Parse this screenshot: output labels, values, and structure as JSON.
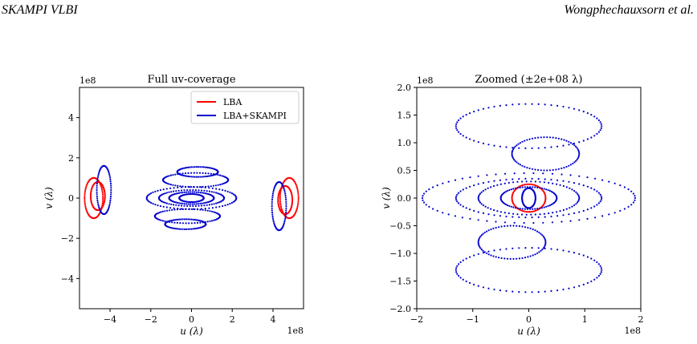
{
  "header": {
    "left": "SKAMPI VLBI",
    "right": "Wongphechauxsorn et al."
  },
  "colors": {
    "lba": "#ff0000",
    "skampi": "#0000cc"
  },
  "chart_data": [
    {
      "type": "scatter",
      "title": "Full uv-coverage",
      "xlabel": "u (λ)",
      "ylabel": "v (λ)",
      "x_offset_label": "1e8",
      "y_offset_label": "1e8",
      "xlim": [
        -5.5,
        5.5
      ],
      "ylim": [
        -5.5,
        5.5
      ],
      "xticks": [
        -4,
        -2,
        0,
        2,
        4
      ],
      "xtick_labels": [
        "−4",
        "−2",
        "0",
        "2",
        "4"
      ],
      "yticks": [
        -4,
        -2,
        0,
        2,
        4
      ],
      "ytick_labels": [
        "−4",
        "−2",
        "0",
        "2",
        "4"
      ],
      "grid": false,
      "legend": {
        "placement": "top-right",
        "entries": [
          "LBA",
          "LBA+SKAMPI"
        ]
      },
      "series": [
        {
          "name": "LBA",
          "color": "#ff0000",
          "arcs": [
            {
              "center": [
                -4.8,
                0.0
              ],
              "rx": 0.45,
              "ry": 1.0
            },
            {
              "center": [
                -4.6,
                0.1
              ],
              "rx": 0.35,
              "ry": 0.7
            },
            {
              "center": [
                4.8,
                0.0
              ],
              "rx": 0.45,
              "ry": 1.0
            },
            {
              "center": [
                4.6,
                -0.1
              ],
              "rx": 0.35,
              "ry": 0.7
            }
          ]
        },
        {
          "name": "LBA+SKAMPI",
          "color": "#0000cc",
          "arcs": [
            {
              "center": [
                0.0,
                0.0
              ],
              "rx": 2.2,
              "ry": 0.55
            },
            {
              "center": [
                0.0,
                0.0
              ],
              "rx": 1.6,
              "ry": 0.4
            },
            {
              "center": [
                0.0,
                0.0
              ],
              "rx": 1.1,
              "ry": 0.3
            },
            {
              "center": [
                0.0,
                0.0
              ],
              "rx": 0.6,
              "ry": 0.2
            },
            {
              "center": [
                0.2,
                0.9
              ],
              "rx": 1.6,
              "ry": 0.35
            },
            {
              "center": [
                -0.2,
                -0.9
              ],
              "rx": 1.6,
              "ry": 0.35
            },
            {
              "center": [
                0.3,
                1.3
              ],
              "rx": 1.0,
              "ry": 0.25
            },
            {
              "center": [
                -0.3,
                -1.3
              ],
              "rx": 1.0,
              "ry": 0.25
            },
            {
              "center": [
                -4.3,
                0.4
              ],
              "rx": 0.35,
              "ry": 1.2
            },
            {
              "center": [
                4.3,
                -0.4
              ],
              "rx": 0.35,
              "ry": 1.2
            }
          ]
        }
      ]
    },
    {
      "type": "scatter",
      "title": "Zoomed (±2e+08 λ)",
      "xlabel": "u (λ)",
      "ylabel": "v (λ)",
      "x_offset_label": "1e8",
      "y_offset_label": "1e8",
      "xlim": [
        -2.0,
        2.0
      ],
      "ylim": [
        -2.0,
        2.0
      ],
      "xticks": [
        -2,
        -1,
        0,
        1,
        2
      ],
      "xtick_labels": [
        "−2",
        "−1",
        "0",
        "1",
        "2"
      ],
      "yticks": [
        -2.0,
        -1.5,
        -1.0,
        -0.5,
        0.0,
        0.5,
        1.0,
        1.5,
        2.0
      ],
      "ytick_labels": [
        "−2.0",
        "−1.5",
        "−1.0",
        "−0.5",
        "0.0",
        "0.5",
        "1.0",
        "1.5",
        "2.0"
      ],
      "grid": false,
      "series": [
        {
          "name": "LBA",
          "color": "#ff0000",
          "arcs": [
            {
              "center": [
                0.0,
                0.0
              ],
              "rx": 0.3,
              "ry": 0.25
            }
          ]
        },
        {
          "name": "LBA+SKAMPI",
          "color": "#0000cc",
          "arcs": [
            {
              "center": [
                0.0,
                0.0
              ],
              "rx": 1.9,
              "ry": 0.45
            },
            {
              "center": [
                0.0,
                0.0
              ],
              "rx": 1.3,
              "ry": 0.35
            },
            {
              "center": [
                0.0,
                0.0
              ],
              "rx": 0.9,
              "ry": 0.3
            },
            {
              "center": [
                0.0,
                0.0
              ],
              "rx": 0.5,
              "ry": 0.2
            },
            {
              "center": [
                0.0,
                0.0
              ],
              "rx": 0.12,
              "ry": 0.18
            },
            {
              "center": [
                0.3,
                0.8
              ],
              "rx": 0.6,
              "ry": 0.3
            },
            {
              "center": [
                -0.3,
                -0.8
              ],
              "rx": 0.6,
              "ry": 0.3
            },
            {
              "center": [
                0.0,
                1.3
              ],
              "rx": 1.3,
              "ry": 0.4
            },
            {
              "center": [
                0.0,
                -1.3
              ],
              "rx": 1.3,
              "ry": 0.4
            }
          ]
        }
      ]
    }
  ]
}
